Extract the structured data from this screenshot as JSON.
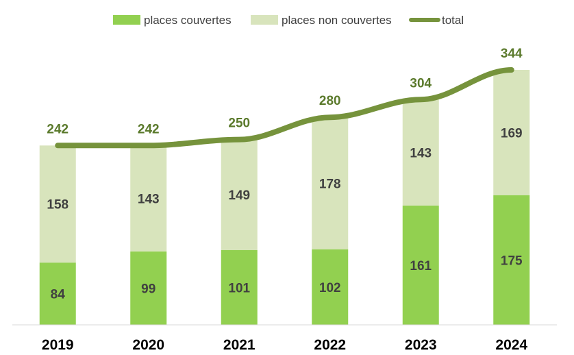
{
  "chart_data": {
    "type": "bar",
    "stacked": true,
    "title": "",
    "xlabel": "",
    "ylabel": "",
    "ylim": [
      0,
      360
    ],
    "grid": false,
    "legend_position": "top",
    "categories": [
      "2019",
      "2020",
      "2021",
      "2022",
      "2023",
      "2024"
    ],
    "series": [
      {
        "name": "places couvertes",
        "kind": "bar",
        "color": "#92d050",
        "values": [
          84,
          99,
          101,
          102,
          161,
          175
        ]
      },
      {
        "name": "places non couvertes",
        "kind": "bar",
        "color": "#d8e4bc",
        "values": [
          158,
          143,
          149,
          178,
          143,
          169
        ]
      },
      {
        "name": "total",
        "kind": "line",
        "color": "#76933c",
        "values": [
          242,
          242,
          250,
          280,
          304,
          344
        ]
      }
    ]
  }
}
